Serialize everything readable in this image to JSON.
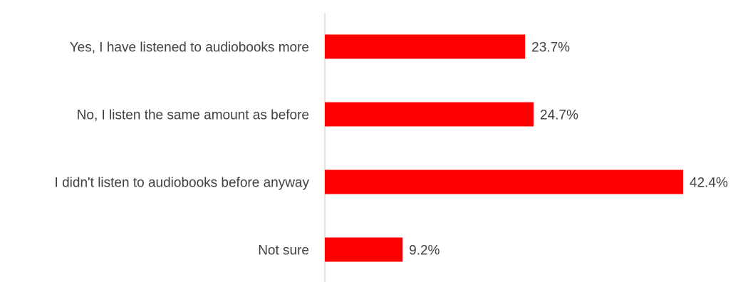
{
  "chart_data": {
    "type": "bar",
    "orientation": "horizontal",
    "categories": [
      "Yes, I have listened to audiobooks more",
      "No, I listen the same amount as before",
      "I didn't listen to audiobooks before anyway",
      "Not sure"
    ],
    "values": [
      23.7,
      24.7,
      42.4,
      9.2
    ],
    "value_labels": [
      "23.7%",
      "24.7%",
      "42.4%",
      "9.2%"
    ],
    "xlim": [
      0,
      42.4
    ],
    "bar_color": "#ff0000",
    "axis_color": "#d9d9d9",
    "grid": false,
    "legend": "none"
  }
}
